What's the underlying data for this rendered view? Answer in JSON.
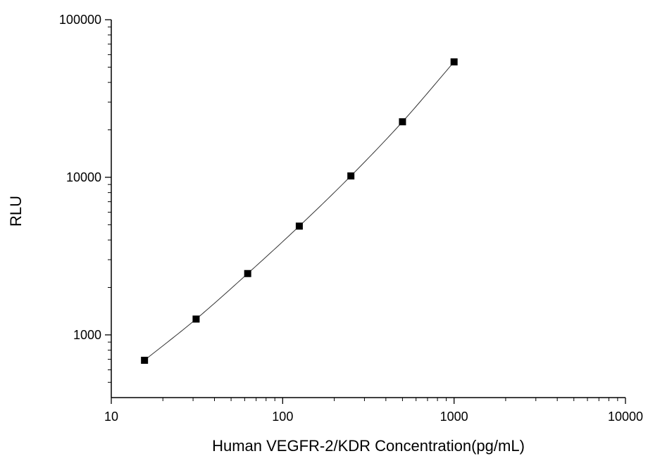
{
  "chart_data": {
    "type": "scatter",
    "title": "",
    "xlabel": "Human VEGFR-2/KDR Concentration(pg/mL)",
    "ylabel": "RLU",
    "xscale": "log",
    "yscale": "log",
    "xlim": [
      10,
      10000
    ],
    "ylim": [
      400,
      100000
    ],
    "xticks": [
      10,
      100,
      1000,
      10000
    ],
    "xtick_labels": [
      "10",
      "100",
      "1000",
      "10000"
    ],
    "yticks": [
      1000,
      10000,
      100000
    ],
    "ytick_labels": [
      "1000",
      "10000",
      "100000"
    ],
    "grid": false,
    "legend": "none",
    "marker": "square",
    "fit_line": true,
    "colors": {
      "marker": "#000000",
      "line": "#333333",
      "axis": "#000000"
    },
    "series": [
      {
        "x": [
          15.625,
          31.25,
          62.5,
          125,
          250,
          500,
          1000
        ],
        "y": [
          690,
          1260,
          2450,
          4900,
          10200,
          22500,
          54000
        ]
      }
    ]
  }
}
